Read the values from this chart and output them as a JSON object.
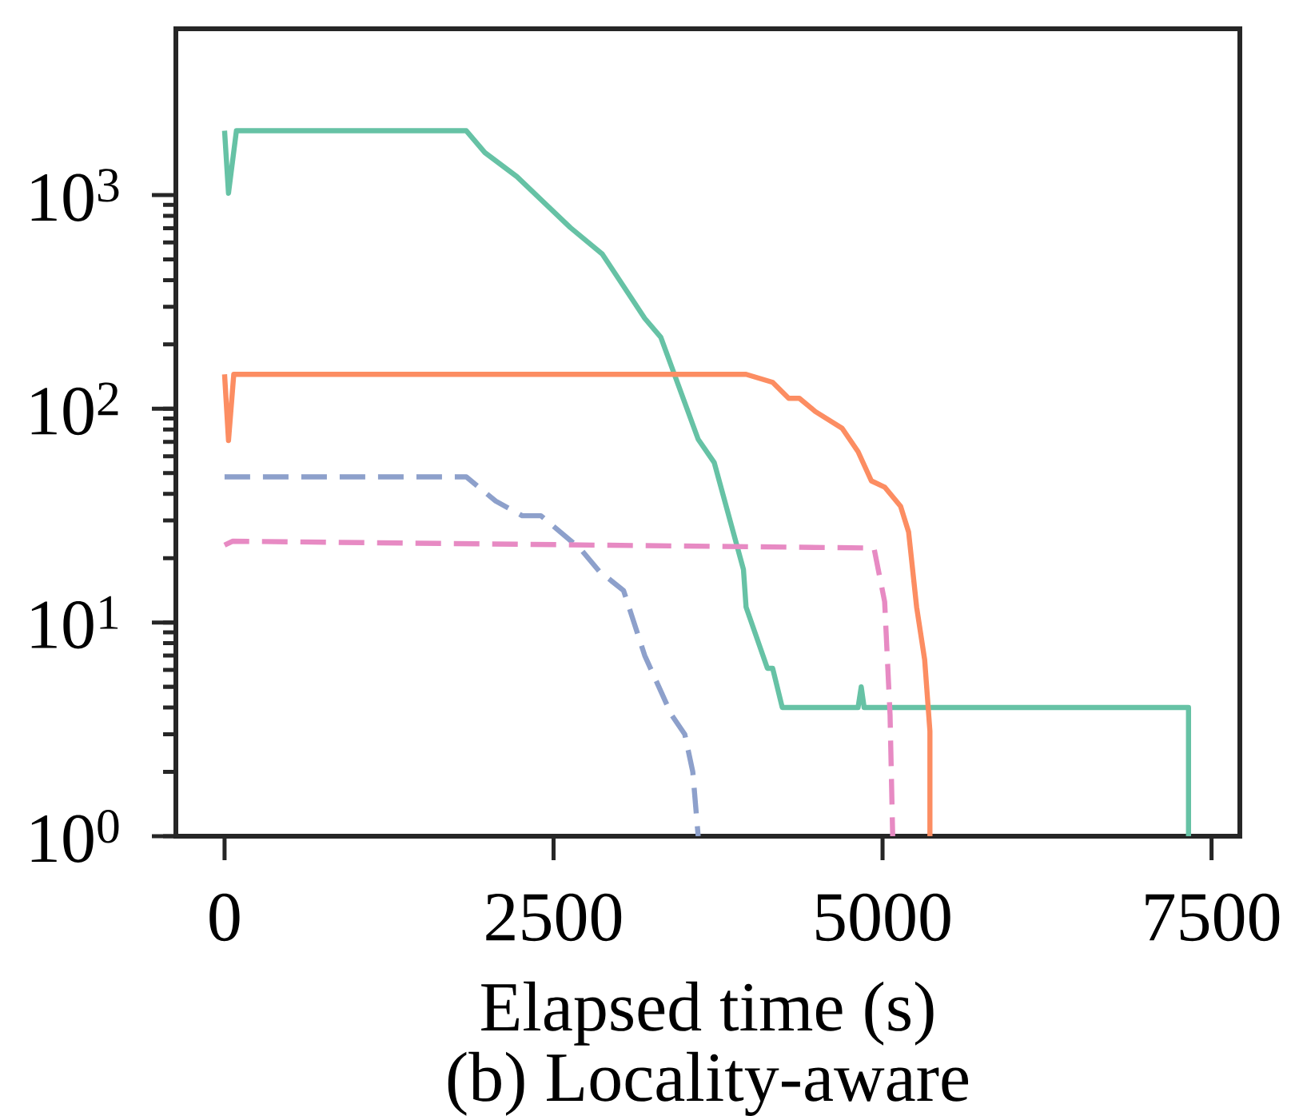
{
  "chart_data": {
    "type": "line",
    "title": "(b) Locality-aware",
    "xlabel": "Elapsed time (s)",
    "log": "y",
    "xlim": [
      -370,
      7715
    ],
    "ylim": [
      1,
      6000
    ],
    "xticks": [
      0,
      2500,
      5000,
      7500
    ],
    "yticks": [
      {
        "value": 1,
        "label": "10$^{0}$"
      },
      {
        "value": 10,
        "label": "10$^{1}$"
      },
      {
        "value": 100,
        "label": "10$^{2}$"
      },
      {
        "value": 1000,
        "label": "10$^{3}$"
      }
    ],
    "series": [
      {
        "color": "#66c2a5",
        "line_style": "solid",
        "x": [
          0,
          30,
          90,
          1837,
          1978,
          2221,
          2627,
          2870,
          3193,
          3315,
          3599,
          3721,
          3943,
          3963,
          4125,
          4165,
          4238,
          4814,
          4838,
          4860,
          7325,
          7325
        ],
        "values": [
          2000,
          1020,
          2000,
          2000,
          1580,
          1220,
          705,
          530,
          265,
          216,
          72,
          56,
          17.7,
          11.8,
          6.1,
          6.1,
          4,
          4,
          5,
          4,
          4,
          1
        ]
      },
      {
        "color": "#fc8d62",
        "line_style": "solid",
        "x": [
          0,
          30,
          70,
          3963,
          4165,
          4287,
          4368,
          4490,
          4693,
          4814,
          4915,
          5016,
          5137,
          5198,
          5259,
          5320,
          5360,
          5360
        ],
        "values": [
          145,
          71,
          145,
          145,
          133,
          112,
          112,
          97,
          81,
          63,
          46,
          43,
          35,
          26.5,
          11.8,
          6.7,
          3.1,
          1
        ]
      },
      {
        "color": "#8da0cb",
        "line_style": "dashed",
        "x": [
          0,
          1837,
          2060,
          2262,
          2404,
          2707,
          2870,
          2910,
          3032,
          3193,
          3396,
          3497,
          3558,
          3599
        ],
        "values": [
          48,
          48,
          37,
          31.6,
          31.6,
          22,
          16.7,
          16.2,
          14.1,
          7,
          3.7,
          3,
          2,
          1
        ]
      },
      {
        "color": "#e78ac3",
        "line_style": "dashed",
        "x": [
          0,
          60,
          4935,
          5016,
          5057,
          5077
        ],
        "values": [
          23,
          24,
          22.3,
          12.5,
          3.7,
          1
        ]
      }
    ]
  }
}
